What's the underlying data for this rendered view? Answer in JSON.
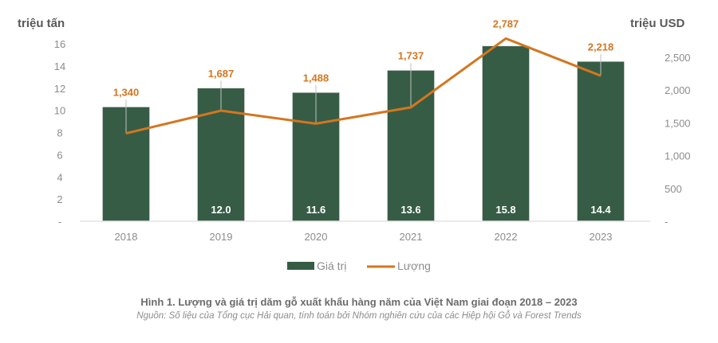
{
  "chart_data": {
    "type": "bar+line",
    "categories": [
      "2018",
      "2019",
      "2020",
      "2021",
      "2022",
      "2023"
    ],
    "series": [
      {
        "name": "Giá trị",
        "type": "bar",
        "axis": "left",
        "color": "#365c45",
        "values": [
          10.3,
          12.0,
          11.6,
          13.6,
          15.8,
          14.4
        ],
        "labels": [
          "",
          "12.0",
          "11.6",
          "13.6",
          "15.8",
          "14.4"
        ]
      },
      {
        "name": "Lượng",
        "type": "line",
        "axis": "right",
        "color": "#d4761e",
        "values": [
          1340,
          1687,
          1488,
          1737,
          2787,
          2218
        ],
        "labels": [
          "1,340",
          "1,687",
          "1,488",
          "1,737",
          "2,787",
          "2,218"
        ]
      }
    ],
    "left_axis": {
      "title": "triệu tấn",
      "ylim": [
        0,
        16
      ],
      "ticks": [
        {
          "value": 0,
          "label": "-"
        },
        {
          "value": 2,
          "label": "2"
        },
        {
          "value": 4,
          "label": "4"
        },
        {
          "value": 6,
          "label": "6"
        },
        {
          "value": 8,
          "label": "8"
        },
        {
          "value": 10,
          "label": "10"
        },
        {
          "value": 12,
          "label": "12"
        },
        {
          "value": 14,
          "label": "14"
        },
        {
          "value": 16,
          "label": "16"
        }
      ]
    },
    "right_axis": {
      "title": "triệu USD",
      "ylim": [
        0,
        3000
      ],
      "ticks": [
        {
          "value": 0,
          "label": "-"
        },
        {
          "value": 500,
          "label": "500"
        },
        {
          "value": 1000,
          "label": "1,000"
        },
        {
          "value": 1500,
          "label": "1,500"
        },
        {
          "value": 2000,
          "label": "2,000"
        },
        {
          "value": 2500,
          "label": "2,500"
        }
      ]
    },
    "grid": false,
    "legend": {
      "position": "bottom",
      "entries": [
        {
          "label": "Giá trị",
          "swatch": "bar",
          "color": "#365c45"
        },
        {
          "label": "Lượng",
          "swatch": "line",
          "color": "#d4761e"
        }
      ]
    },
    "title": "Hình 1. Lượng và giá trị dăm gỗ xuất khẩu hàng năm của Việt Nam giai đoạn 2018 – 2023",
    "subtitle": "Nguồn: Số liệu của Tổng cục Hải quan, tính toán bởi Nhóm nghiên cứu của các Hiệp hội Gỗ và Forest Trends"
  },
  "caption": {
    "title": "Hình 1. Lượng và giá trị dăm gỗ xuất khẩu hàng năm của Việt Nam giai đoạn 2018 – 2023",
    "source": "Nguồn: Số liệu của Tổng cục Hải quan, tính toán bởi Nhóm nghiên cứu của các Hiệp hội Gỗ và Forest Trends"
  }
}
